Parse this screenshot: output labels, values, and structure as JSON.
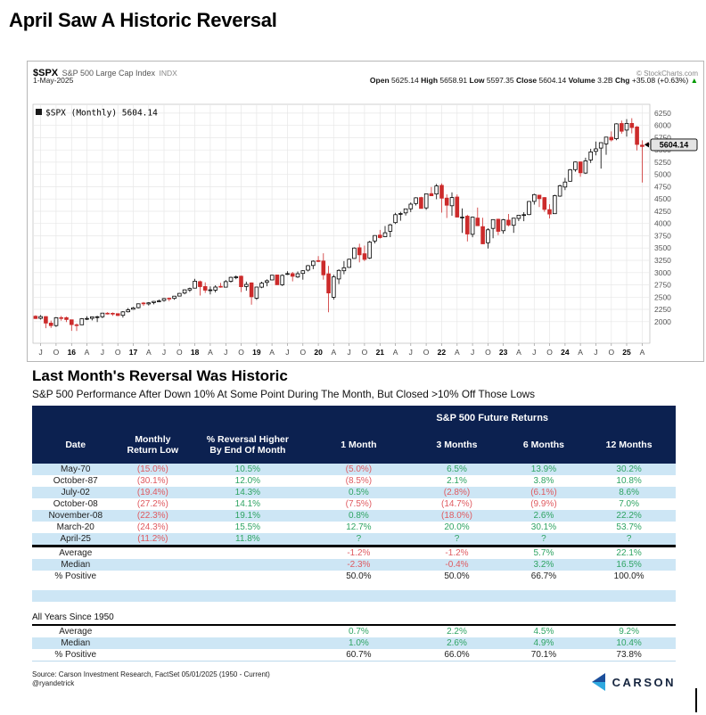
{
  "page": {
    "title": "April Saw A Historic Reversal"
  },
  "chart": {
    "symbol": "$SPX",
    "symbol_name": "S&P 500 Large Cap Index",
    "exchange": "INDX",
    "date": "1-May-2025",
    "copyright": "© StockCharts.com",
    "legend": "$SPX (Monthly) 5604.14",
    "last_price": "5604.14",
    "quote": {
      "open_label": "Open",
      "open": "5625.14",
      "high_label": "High",
      "high": "5658.91",
      "low_label": "Low",
      "low": "5597.35",
      "close_label": "Close",
      "close": "5604.14",
      "volume_label": "Volume",
      "volume": "3.2B",
      "chg_label": "Chg",
      "chg": "+35.08 (+0.63%)",
      "chg_arrow": "▲"
    }
  },
  "chart_data": {
    "type": "candlestick",
    "title": "$SPX S&P 500 Large Cap Index (Monthly)",
    "ylim": [
      1560,
      6430
    ],
    "y_ticks": [
      6250,
      6000,
      5750,
      5500,
      5250,
      5000,
      4750,
      4500,
      4250,
      4000,
      3750,
      3500,
      3250,
      3000,
      2750,
      2500,
      2250,
      2000
    ],
    "x_tick_labels": [
      "J",
      "O",
      "16",
      "A",
      "J",
      "O",
      "17",
      "A",
      "J",
      "O",
      "18",
      "A",
      "J",
      "O",
      "19",
      "A",
      "J",
      "O",
      "20",
      "A",
      "J",
      "O",
      "21",
      "A",
      "J",
      "O",
      "22",
      "A",
      "J",
      "O",
      "23",
      "A",
      "J",
      "O",
      "24",
      "A",
      "J",
      "O",
      "25",
      "A"
    ],
    "grid": true,
    "legend_position": "top-left",
    "months": [
      [
        "Jun-15",
        2111,
        2130,
        2056,
        2063
      ],
      [
        "Jul-15",
        2067,
        2133,
        2044,
        2104
      ],
      [
        "Aug-15",
        2104,
        2113,
        1867,
        1972
      ],
      [
        "Sep-15",
        1971,
        2021,
        1872,
        1920
      ],
      [
        "Oct-15",
        1919,
        2095,
        1894,
        2079
      ],
      [
        "Nov-15",
        2081,
        2116,
        2019,
        2080
      ],
      [
        "Dec-15",
        2082,
        2104,
        1993,
        2044
      ],
      [
        "Jan-16",
        2038,
        2038,
        1812,
        1940
      ],
      [
        "Feb-16",
        1937,
        1963,
        1810,
        1932
      ],
      [
        "Mar-16",
        1937,
        2072,
        1937,
        2060
      ],
      [
        "Apr-16",
        2056,
        2111,
        2033,
        2065
      ],
      [
        "May-16",
        2067,
        2103,
        2025,
        2097
      ],
      [
        "Jun-16",
        2093,
        2120,
        1991,
        2099
      ],
      [
        "Jul-16",
        2099,
        2177,
        2074,
        2174
      ],
      [
        "Aug-16",
        2173,
        2193,
        2147,
        2171
      ],
      [
        "Sep-16",
        2171,
        2187,
        2119,
        2168
      ],
      [
        "Oct-16",
        2164,
        2169,
        2114,
        2126
      ],
      [
        "Nov-16",
        2128,
        2214,
        2083,
        2199
      ],
      [
        "Dec-16",
        2200,
        2277,
        2187,
        2239
      ],
      [
        "Jan-17",
        2251,
        2300,
        2245,
        2279
      ],
      [
        "Feb-17",
        2285,
        2371,
        2271,
        2364
      ],
      [
        "Mar-17",
        2380,
        2400,
        2322,
        2363
      ],
      [
        "Apr-17",
        2362,
        2398,
        2328,
        2384
      ],
      [
        "May-17",
        2388,
        2418,
        2352,
        2412
      ],
      [
        "Jun-17",
        2415,
        2453,
        2405,
        2423
      ],
      [
        "Jul-17",
        2431,
        2484,
        2407,
        2470
      ],
      [
        "Aug-17",
        2477,
        2490,
        2417,
        2472
      ],
      [
        "Sep-17",
        2474,
        2519,
        2446,
        2519
      ],
      [
        "Oct-17",
        2521,
        2582,
        2520,
        2575
      ],
      [
        "Nov-17",
        2583,
        2657,
        2557,
        2648
      ],
      [
        "Dec-17",
        2645,
        2694,
        2605,
        2674
      ],
      [
        "Jan-18",
        2683,
        2873,
        2682,
        2824
      ],
      [
        "Feb-18",
        2816,
        2835,
        2533,
        2714
      ],
      [
        "Mar-18",
        2715,
        2802,
        2586,
        2641
      ],
      [
        "Apr-18",
        2633,
        2717,
        2554,
        2648
      ],
      [
        "May-18",
        2643,
        2742,
        2595,
        2705
      ],
      [
        "Jun-18",
        2719,
        2791,
        2692,
        2718
      ],
      [
        "Jul-18",
        2704,
        2848,
        2698,
        2816
      ],
      [
        "Aug-18",
        2821,
        2916,
        2796,
        2902
      ],
      [
        "Sep-18",
        2896,
        2941,
        2865,
        2914
      ],
      [
        "Oct-18",
        2926,
        2939,
        2603,
        2712
      ],
      [
        "Nov-18",
        2717,
        2815,
        2631,
        2760
      ],
      [
        "Dec-18",
        2790,
        2800,
        2347,
        2507
      ],
      [
        "Jan-19",
        2477,
        2709,
        2444,
        2704
      ],
      [
        "Feb-19",
        2703,
        2813,
        2682,
        2784
      ],
      [
        "Mar-19",
        2799,
        2861,
        2722,
        2834
      ],
      [
        "Apr-19",
        2849,
        2949,
        2848,
        2946
      ],
      [
        "May-19",
        2952,
        2954,
        2751,
        2752
      ],
      [
        "Jun-19",
        2751,
        2964,
        2729,
        2942
      ],
      [
        "Jul-19",
        2971,
        3028,
        2952,
        2980
      ],
      [
        "Aug-19",
        2980,
        3014,
        2822,
        2926
      ],
      [
        "Sep-19",
        2909,
        3022,
        2891,
        2977
      ],
      [
        "Oct-19",
        2983,
        3050,
        2855,
        3038
      ],
      [
        "Nov-19",
        3051,
        3154,
        3023,
        3141
      ],
      [
        "Dec-19",
        3144,
        3248,
        3070,
        3231
      ],
      [
        "Jan-20",
        3244,
        3338,
        3214,
        3226
      ],
      [
        "Feb-20",
        3236,
        3393,
        2856,
        2954
      ],
      [
        "Mar-20",
        2975,
        3137,
        2192,
        2585
      ],
      [
        "Apr-20",
        2498,
        2955,
        2448,
        2912
      ],
      [
        "May-20",
        2870,
        3068,
        2766,
        3044
      ],
      [
        "Jun-20",
        3038,
        3233,
        2966,
        3100
      ],
      [
        "Jul-20",
        3106,
        3280,
        3101,
        3271
      ],
      [
        "Aug-20",
        3288,
        3514,
        3284,
        3500
      ],
      [
        "Sep-20",
        3507,
        3588,
        3209,
        3363
      ],
      [
        "Oct-20",
        3385,
        3550,
        3234,
        3270
      ],
      [
        "Nov-20",
        3296,
        3646,
        3279,
        3622
      ],
      [
        "Dec-20",
        3645,
        3760,
        3596,
        3756
      ],
      [
        "Jan-21",
        3764,
        3870,
        3694,
        3714
      ],
      [
        "Feb-21",
        3731,
        3950,
        3725,
        3811
      ],
      [
        "Mar-21",
        3842,
        3994,
        3723,
        3973
      ],
      [
        "Apr-21",
        4020,
        4218,
        3992,
        4181
      ],
      [
        "May-21",
        4191,
        4238,
        4057,
        4204
      ],
      [
        "Jun-21",
        4216,
        4302,
        4164,
        4298
      ],
      [
        "Jul-21",
        4300,
        4429,
        4233,
        4395
      ],
      [
        "Aug-21",
        4406,
        4537,
        4367,
        4523
      ],
      [
        "Sep-21",
        4529,
        4546,
        4306,
        4308
      ],
      [
        "Oct-21",
        4317,
        4608,
        4278,
        4605
      ],
      [
        "Nov-21",
        4610,
        4744,
        4560,
        4567
      ],
      [
        "Dec-21",
        4602,
        4808,
        4495,
        4766
      ],
      [
        "Jan-22",
        4778,
        4818,
        4222,
        4516
      ],
      [
        "Feb-22",
        4519,
        4595,
        4114,
        4374
      ],
      [
        "Mar-22",
        4363,
        4637,
        4158,
        4530
      ],
      [
        "Apr-22",
        4540,
        4593,
        4124,
        4132
      ],
      [
        "May-22",
        4130,
        4307,
        3810,
        4132
      ],
      [
        "Jun-22",
        4149,
        4178,
        3636,
        3785
      ],
      [
        "Jul-22",
        3781,
        4140,
        3721,
        4130
      ],
      [
        "Aug-22",
        4112,
        4325,
        3954,
        3955
      ],
      [
        "Sep-22",
        3936,
        4119,
        3584,
        3586
      ],
      [
        "Oct-22",
        3609,
        3905,
        3491,
        3872
      ],
      [
        "Nov-22",
        3901,
        4080,
        3698,
        4080
      ],
      [
        "Dec-22",
        4087,
        4101,
        3764,
        3840
      ],
      [
        "Jan-23",
        3853,
        4094,
        3794,
        4077
      ],
      [
        "Feb-23",
        4070,
        4195,
        3943,
        3970
      ],
      [
        "Mar-23",
        3963,
        4110,
        3809,
        4109
      ],
      [
        "Apr-23",
        4103,
        4170,
        4049,
        4169
      ],
      [
        "May-23",
        4166,
        4231,
        4048,
        4180
      ],
      [
        "Jun-23",
        4183,
        4458,
        4171,
        4450
      ],
      [
        "Jul-23",
        4450,
        4607,
        4385,
        4589
      ],
      [
        "Aug-23",
        4578,
        4584,
        4335,
        4508
      ],
      [
        "Sep-23",
        4530,
        4541,
        4238,
        4288
      ],
      [
        "Oct-23",
        4284,
        4393,
        4104,
        4194
      ],
      [
        "Nov-23",
        4201,
        4587,
        4197,
        4568
      ],
      [
        "Dec-23",
        4559,
        4793,
        4546,
        4770
      ],
      [
        "Jan-24",
        4745,
        4931,
        4682,
        4846
      ],
      [
        "Feb-24",
        4861,
        5111,
        4853,
        5096
      ],
      [
        "Mar-24",
        5098,
        5264,
        5057,
        5254
      ],
      [
        "Apr-24",
        5257,
        5264,
        4954,
        5036
      ],
      [
        "May-24",
        5029,
        5342,
        5011,
        5278
      ],
      [
        "Jun-24",
        5297,
        5523,
        5234,
        5460
      ],
      [
        "Jul-24",
        5471,
        5670,
        5391,
        5522
      ],
      [
        "Aug-24",
        5538,
        5651,
        5119,
        5648
      ],
      [
        "Sep-24",
        5623,
        5767,
        5402,
        5762
      ],
      [
        "Oct-24",
        5757,
        5878,
        5674,
        5705
      ],
      [
        "Nov-24",
        5728,
        6044,
        5697,
        6032
      ],
      [
        "Dec-24",
        6040,
        6100,
        5832,
        5882
      ],
      [
        "Jan-25",
        5904,
        6129,
        5773,
        6041
      ],
      [
        "Feb-25",
        6041,
        6147,
        5837,
        5955
      ],
      [
        "Mar-25",
        5968,
        5986,
        5488,
        5612
      ],
      [
        "Apr-25",
        5597,
        5695,
        4835,
        5569
      ],
      [
        "May-25",
        5625,
        5659,
        5597,
        5604.14
      ]
    ]
  },
  "table_section": {
    "title": "Last Month's Reversal Was Historic",
    "subtitle": "S&P 500 Performance After Down 10% At Some Point During The Month, But Closed >10% Off Those Lows",
    "group_header": "S&P 500 Future Returns",
    "columns": [
      "Date",
      "Monthly\nReturn Low",
      "% Reversal Higher\nBy End Of Month",
      "1 Month",
      "3 Months",
      "6 Months",
      "12 Months"
    ],
    "rows": [
      {
        "cells": [
          "May-70",
          "(15.0%)",
          "10.5%",
          "(5.0%)",
          "6.5%",
          "13.9%",
          "30.2%"
        ],
        "shade": true
      },
      {
        "cells": [
          "October-87",
          "(30.1%)",
          "12.0%",
          "(8.5%)",
          "2.1%",
          "3.8%",
          "10.8%"
        ],
        "shade": false
      },
      {
        "cells": [
          "July-02",
          "(19.4%)",
          "14.3%",
          "0.5%",
          "(2.8%)",
          "(6.1%)",
          "8.6%"
        ],
        "shade": true
      },
      {
        "cells": [
          "October-08",
          "(27.2%)",
          "14.1%",
          "(7.5%)",
          "(14.7%)",
          "(9.9%)",
          "7.0%"
        ],
        "shade": false
      },
      {
        "cells": [
          "November-08",
          "(22.3%)",
          "19.1%",
          "0.8%",
          "(18.0%)",
          "2.6%",
          "22.2%"
        ],
        "shade": true
      },
      {
        "cells": [
          "March-20",
          "(24.3%)",
          "15.5%",
          "12.7%",
          "20.0%",
          "30.1%",
          "53.7%"
        ],
        "shade": false
      },
      {
        "cells": [
          "April-25",
          "(11.2%)",
          "11.8%",
          "?",
          "?",
          "?",
          "?"
        ],
        "shade": true,
        "thick": true
      }
    ],
    "summary_rows": [
      {
        "cells": [
          "Average",
          "",
          "",
          "-1.2%",
          "-1.2%",
          "5.7%",
          "22.1%"
        ],
        "shade": false
      },
      {
        "cells": [
          "Median",
          "",
          "",
          "-2.3%",
          "-0.4%",
          "3.2%",
          "16.5%"
        ],
        "shade": true
      },
      {
        "cells": [
          "% Positive",
          "",
          "",
          "50.0%",
          "50.0%",
          "66.7%",
          "100.0%"
        ],
        "shade": false,
        "plain": true
      }
    ],
    "all_years_label": "All Years Since 1950",
    "all_years_rows": [
      {
        "cells": [
          "Average",
          "",
          "",
          "0.7%",
          "2.2%",
          "4.5%",
          "9.2%"
        ],
        "shade": false
      },
      {
        "cells": [
          "Median",
          "",
          "",
          "1.0%",
          "2.6%",
          "4.9%",
          "10.4%"
        ],
        "shade": true
      },
      {
        "cells": [
          "% Positive",
          "",
          "",
          "60.7%",
          "66.0%",
          "70.1%",
          "73.8%"
        ],
        "shade": false,
        "plain": true,
        "bottom": true
      }
    ]
  },
  "footer": {
    "source_line1": "Source: Carson Investment Research, FactSet 05/01/2025 (1950 - Current)",
    "source_line2": "@ryandetrick",
    "brand": "CARSON"
  },
  "colors": {
    "header_bg": "#0c2150",
    "row_shade": "#cde6f5",
    "positive": "#2fa463",
    "negative": "#df5a60",
    "candle_down": "#cc2b2b",
    "candle_up_stroke": "#000000",
    "grid": "#e7e7e7",
    "brand_dark": "#1b4e9b",
    "brand_light": "#2fa9e0"
  }
}
